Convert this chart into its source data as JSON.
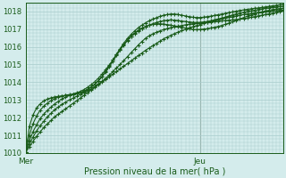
{
  "title": "",
  "xlabel": "Pression niveau de la mer( hPa )",
  "bg_color": "#d4ecec",
  "grid_color": "#a8cccc",
  "line_color": "#1a5c1a",
  "ylim": [
    1010.0,
    1018.5
  ],
  "xlim": [
    0,
    71
  ],
  "yticks": [
    1010,
    1011,
    1012,
    1013,
    1014,
    1015,
    1016,
    1017,
    1018
  ],
  "xtick_labels": [
    "Mer",
    "Jeu"
  ],
  "xtick_positions": [
    0,
    48
  ],
  "vline_x": 48,
  "n_points": 72,
  "series": [
    [
      1010.05,
      1010.35,
      1010.65,
      1010.95,
      1011.2,
      1011.45,
      1011.65,
      1011.85,
      1012.05,
      1012.2,
      1012.35,
      1012.5,
      1012.65,
      1012.8,
      1012.95,
      1013.1,
      1013.25,
      1013.4,
      1013.55,
      1013.7,
      1013.85,
      1014.0,
      1014.15,
      1014.3,
      1014.45,
      1014.6,
      1014.75,
      1014.9,
      1015.05,
      1015.2,
      1015.35,
      1015.5,
      1015.65,
      1015.8,
      1015.93,
      1016.06,
      1016.19,
      1016.32,
      1016.45,
      1016.55,
      1016.65,
      1016.75,
      1016.83,
      1016.91,
      1016.99,
      1017.07,
      1017.13,
      1017.19,
      1017.25,
      1017.31,
      1017.37,
      1017.42,
      1017.47,
      1017.52,
      1017.57,
      1017.62,
      1017.66,
      1017.7,
      1017.74,
      1017.78,
      1017.82,
      1017.85,
      1017.88,
      1017.91,
      1017.94,
      1017.96,
      1017.98,
      1018.0,
      1018.02,
      1018.04,
      1018.06,
      1018.08
    ],
    [
      1010.05,
      1010.5,
      1010.9,
      1011.25,
      1011.55,
      1011.8,
      1012.05,
      1012.25,
      1012.45,
      1012.6,
      1012.75,
      1012.88,
      1013.0,
      1013.1,
      1013.2,
      1013.3,
      1013.4,
      1013.5,
      1013.62,
      1013.75,
      1013.9,
      1014.05,
      1014.22,
      1014.4,
      1014.6,
      1014.8,
      1015.0,
      1015.22,
      1015.44,
      1015.66,
      1015.88,
      1016.1,
      1016.3,
      1016.48,
      1016.62,
      1016.73,
      1016.82,
      1016.9,
      1016.97,
      1017.03,
      1017.08,
      1017.12,
      1017.16,
      1017.2,
      1017.24,
      1017.27,
      1017.3,
      1017.32,
      1017.34,
      1017.36,
      1017.38,
      1017.4,
      1017.42,
      1017.44,
      1017.46,
      1017.48,
      1017.5,
      1017.52,
      1017.54,
      1017.56,
      1017.58,
      1017.62,
      1017.66,
      1017.7,
      1017.74,
      1017.78,
      1017.82,
      1017.86,
      1017.9,
      1017.94,
      1017.98,
      1018.02
    ],
    [
      1010.05,
      1010.7,
      1011.2,
      1011.6,
      1011.95,
      1012.2,
      1012.42,
      1012.6,
      1012.78,
      1012.92,
      1013.05,
      1013.15,
      1013.25,
      1013.33,
      1013.4,
      1013.48,
      1013.58,
      1013.7,
      1013.85,
      1014.02,
      1014.22,
      1014.45,
      1014.7,
      1014.97,
      1015.25,
      1015.55,
      1015.85,
      1016.12,
      1016.38,
      1016.6,
      1016.78,
      1016.93,
      1017.05,
      1017.15,
      1017.22,
      1017.27,
      1017.3,
      1017.3,
      1017.28,
      1017.25,
      1017.22,
      1017.18,
      1017.14,
      1017.1,
      1017.06,
      1017.02,
      1016.98,
      1016.97,
      1016.98,
      1017.0,
      1017.02,
      1017.06,
      1017.1,
      1017.15,
      1017.2,
      1017.27,
      1017.34,
      1017.41,
      1017.49,
      1017.57,
      1017.65,
      1017.72,
      1017.79,
      1017.86,
      1017.92,
      1017.97,
      1018.02,
      1018.06,
      1018.1,
      1018.13,
      1018.16,
      1018.18
    ],
    [
      1010.05,
      1011.0,
      1011.65,
      1012.1,
      1012.42,
      1012.65,
      1012.82,
      1012.97,
      1013.08,
      1013.15,
      1013.22,
      1013.27,
      1013.3,
      1013.33,
      1013.37,
      1013.42,
      1013.5,
      1013.6,
      1013.72,
      1013.88,
      1014.07,
      1014.3,
      1014.57,
      1014.87,
      1015.18,
      1015.5,
      1015.82,
      1016.1,
      1016.35,
      1016.57,
      1016.75,
      1016.9,
      1017.03,
      1017.13,
      1017.22,
      1017.3,
      1017.37,
      1017.43,
      1017.47,
      1017.5,
      1017.52,
      1017.5,
      1017.48,
      1017.45,
      1017.43,
      1017.4,
      1017.38,
      1017.37,
      1017.38,
      1017.4,
      1017.43,
      1017.47,
      1017.52,
      1017.57,
      1017.62,
      1017.68,
      1017.74,
      1017.8,
      1017.86,
      1017.9,
      1017.95,
      1017.99,
      1018.02,
      1018.06,
      1018.1,
      1018.14,
      1018.17,
      1018.2,
      1018.23,
      1018.25,
      1018.27,
      1018.29
    ],
    [
      1010.05,
      1011.5,
      1012.15,
      1012.55,
      1012.78,
      1012.95,
      1013.05,
      1013.12,
      1013.17,
      1013.2,
      1013.23,
      1013.25,
      1013.27,
      1013.3,
      1013.35,
      1013.4,
      1013.48,
      1013.58,
      1013.72,
      1013.88,
      1014.08,
      1014.32,
      1014.6,
      1014.92,
      1015.25,
      1015.58,
      1015.9,
      1016.2,
      1016.47,
      1016.7,
      1016.9,
      1017.07,
      1017.22,
      1017.35,
      1017.46,
      1017.56,
      1017.64,
      1017.72,
      1017.78,
      1017.82,
      1017.85,
      1017.85,
      1017.82,
      1017.78,
      1017.74,
      1017.7,
      1017.67,
      1017.65,
      1017.65,
      1017.67,
      1017.7,
      1017.73,
      1017.77,
      1017.81,
      1017.85,
      1017.89,
      1017.93,
      1017.97,
      1018.01,
      1018.05,
      1018.08,
      1018.11,
      1018.14,
      1018.17,
      1018.19,
      1018.22,
      1018.25,
      1018.28,
      1018.31,
      1018.34,
      1018.37,
      1018.4
    ]
  ]
}
